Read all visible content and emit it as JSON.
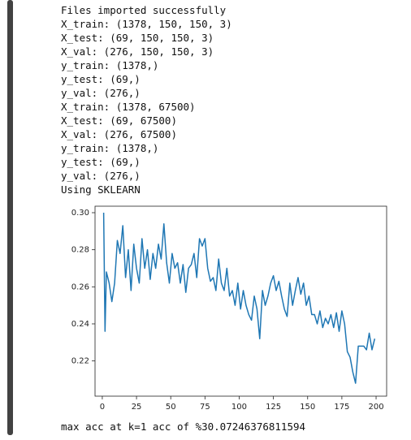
{
  "lines": [
    "Files imported successfully",
    "X_train: (1378, 150, 150, 3)",
    "X_test: (69, 150, 150, 3)",
    "X_val: (276, 150, 150, 3)",
    "y_train: (1378,)",
    "y_test: (69,)",
    "y_val: (276,)",
    "X_train: (1378, 67500)",
    "X_test: (69, 67500)",
    "X_val: (276, 67500)",
    "y_train: (1378,)",
    "y_test: (69,)",
    "y_val: (276,)",
    "Using SKLEARN"
  ],
  "chart_data": {
    "type": "line",
    "color": "#1f77b4",
    "x": [
      1,
      2,
      3,
      5,
      7,
      9,
      11,
      13,
      15,
      17,
      19,
      21,
      23,
      25,
      27,
      29,
      31,
      33,
      35,
      37,
      39,
      41,
      43,
      45,
      47,
      49,
      51,
      53,
      55,
      57,
      59,
      61,
      63,
      65,
      67,
      69,
      71,
      73,
      75,
      77,
      79,
      81,
      83,
      85,
      87,
      89,
      91,
      93,
      95,
      97,
      99,
      101,
      103,
      105,
      107,
      109,
      111,
      113,
      115,
      117,
      119,
      121,
      123,
      125,
      127,
      129,
      131,
      133,
      135,
      137,
      139,
      141,
      143,
      145,
      147,
      149,
      151,
      153,
      155,
      157,
      159,
      161,
      163,
      165,
      167,
      169,
      171,
      173,
      175,
      177,
      179,
      181,
      183,
      185,
      187,
      189,
      191,
      193,
      195,
      197,
      199
    ],
    "values": [
      0.3,
      0.236,
      0.268,
      0.262,
      0.252,
      0.262,
      0.285,
      0.278,
      0.293,
      0.265,
      0.28,
      0.258,
      0.283,
      0.27,
      0.262,
      0.286,
      0.27,
      0.28,
      0.264,
      0.278,
      0.27,
      0.283,
      0.275,
      0.294,
      0.273,
      0.262,
      0.278,
      0.27,
      0.273,
      0.262,
      0.272,
      0.257,
      0.27,
      0.272,
      0.278,
      0.265,
      0.286,
      0.282,
      0.286,
      0.27,
      0.263,
      0.265,
      0.258,
      0.275,
      0.262,
      0.258,
      0.27,
      0.255,
      0.258,
      0.25,
      0.262,
      0.248,
      0.258,
      0.25,
      0.245,
      0.242,
      0.255,
      0.248,
      0.232,
      0.258,
      0.25,
      0.255,
      0.262,
      0.266,
      0.258,
      0.263,
      0.255,
      0.248,
      0.244,
      0.262,
      0.25,
      0.258,
      0.265,
      0.256,
      0.262,
      0.25,
      0.255,
      0.245,
      0.245,
      0.24,
      0.247,
      0.238,
      0.243,
      0.24,
      0.245,
      0.238,
      0.246,
      0.236,
      0.247,
      0.24,
      0.225,
      0.222,
      0.214,
      0.208,
      0.228,
      0.228,
      0.228,
      0.226,
      0.235,
      0.226,
      0.232
    ],
    "xlim": [
      -5.3,
      207.7
    ],
    "xticks": [
      0,
      25,
      50,
      75,
      100,
      125,
      150,
      175,
      200
    ],
    "ylim": [
      0.201,
      0.3035
    ],
    "yticks": [
      0.22,
      0.24,
      0.26,
      0.28,
      {
        "value": 0.3,
        "label": "0.30"
      }
    ]
  },
  "result": "max acc at k=1 acc of %30.07246376811594"
}
